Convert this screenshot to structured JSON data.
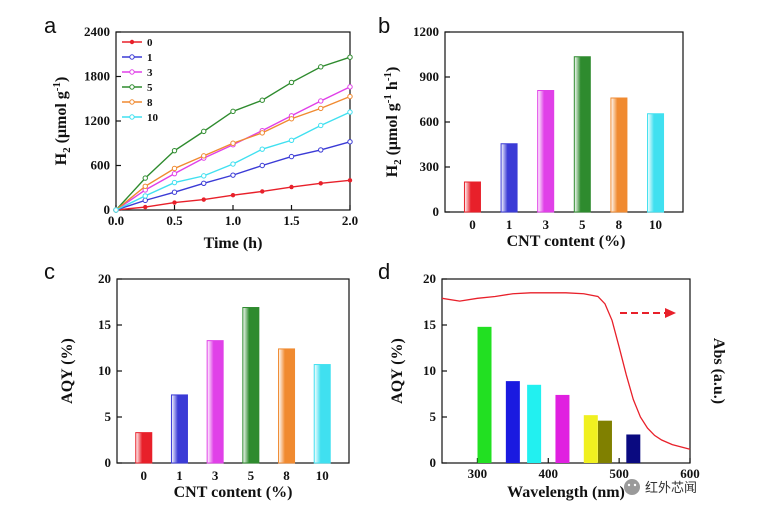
{
  "chart_data": [
    {
      "panel": "a",
      "type": "line",
      "xlabel": "Time (h)",
      "ylabel": "H2 (μmol g-1)",
      "xlim": [
        0,
        2.0
      ],
      "ylim": [
        0,
        2400
      ],
      "xticks": [
        "0.0",
        "0.5",
        "1.0",
        "1.5",
        "2.0"
      ],
      "yticks": [
        "0",
        "600",
        "1200",
        "1800",
        "2400"
      ],
      "legend_position": "top-left",
      "x": [
        0,
        0.25,
        0.5,
        0.75,
        1.0,
        1.25,
        1.5,
        1.75,
        2.0
      ],
      "series": [
        {
          "name": "0",
          "color": "#e8202a",
          "values": [
            0,
            40,
            100,
            140,
            200,
            250,
            310,
            360,
            400
          ]
        },
        {
          "name": "1",
          "color": "#3b3bd6",
          "values": [
            0,
            130,
            240,
            360,
            470,
            600,
            720,
            810,
            920
          ]
        },
        {
          "name": "3",
          "color": "#e040e8",
          "values": [
            0,
            270,
            490,
            700,
            880,
            1070,
            1270,
            1470,
            1660
          ]
        },
        {
          "name": "5",
          "color": "#2e8b2e",
          "values": [
            0,
            430,
            800,
            1060,
            1330,
            1480,
            1720,
            1930,
            2060
          ]
        },
        {
          "name": "8",
          "color": "#f08a30",
          "values": [
            0,
            320,
            560,
            730,
            900,
            1040,
            1230,
            1370,
            1530
          ]
        },
        {
          "name": "10",
          "color": "#40e0f0",
          "values": [
            0,
            190,
            370,
            460,
            620,
            820,
            940,
            1140,
            1320
          ]
        }
      ]
    },
    {
      "panel": "b",
      "type": "bar",
      "xlabel": "CNT content (%)",
      "ylabel": "H2 (μmol g-1 h-1)",
      "ylim": [
        0,
        1200
      ],
      "yticks": [
        "0",
        "300",
        "600",
        "900",
        "1200"
      ],
      "categories": [
        "0",
        "1",
        "3",
        "5",
        "8",
        "10"
      ],
      "values": [
        200,
        455,
        810,
        1035,
        760,
        655
      ],
      "colors": [
        "#e8202a",
        "#3b3bd6",
        "#e040e8",
        "#2e8b2e",
        "#f08a30",
        "#40e0f0"
      ]
    },
    {
      "panel": "c",
      "type": "bar",
      "xlabel": "CNT content (%)",
      "ylabel": "AQY (%)",
      "ylim": [
        0,
        20
      ],
      "yticks": [
        "0",
        "5",
        "10",
        "15",
        "20"
      ],
      "categories": [
        "0",
        "1",
        "3",
        "5",
        "8",
        "10"
      ],
      "values": [
        3.3,
        7.4,
        13.3,
        16.9,
        12.4,
        10.7
      ],
      "colors": [
        "#e8202a",
        "#3b3bd6",
        "#e040e8",
        "#2e8b2e",
        "#f08a30",
        "#40e0f0"
      ]
    },
    {
      "panel": "d",
      "type": "bar",
      "xlabel": "Wavelength (nm)",
      "ylabel": "AQY (%)",
      "y2label": "Abs (a.u.)",
      "xlim": [
        250,
        600
      ],
      "ylim": [
        0,
        20
      ],
      "xticks": [
        "300",
        "400",
        "500",
        "600"
      ],
      "yticks": [
        "0",
        "5",
        "10",
        "15",
        "20"
      ],
      "bars": [
        {
          "x": 310,
          "value": 14.8,
          "color": "#22e022"
        },
        {
          "x": 350,
          "value": 8.9,
          "color": "#1a1ae0"
        },
        {
          "x": 380,
          "value": 8.5,
          "color": "#22f0f0"
        },
        {
          "x": 420,
          "value": 7.4,
          "color": "#e020e0"
        },
        {
          "x": 460,
          "value": 5.2,
          "color": "#f0f020"
        },
        {
          "x": 480,
          "value": 4.6,
          "color": "#808000"
        },
        {
          "x": 520,
          "value": 3.1,
          "color": "#0a0a80"
        }
      ],
      "absorption_curve": {
        "color": "#e8202a",
        "x": [
          250,
          275,
          300,
          325,
          350,
          375,
          400,
          425,
          450,
          470,
          480,
          490,
          500,
          510,
          520,
          530,
          540,
          550,
          560,
          575,
          600
        ],
        "values": [
          17.9,
          17.6,
          17.9,
          18.1,
          18.4,
          18.5,
          18.5,
          18.5,
          18.4,
          18.1,
          17.3,
          15.5,
          12.6,
          9.6,
          6.9,
          5.0,
          3.8,
          3.0,
          2.5,
          2.0,
          1.5
        ]
      },
      "arrow_color": "#e8202a"
    }
  ],
  "panels": {
    "a": "a",
    "b": "b",
    "c": "c",
    "d": "d"
  },
  "watermark": "红外芯闻"
}
